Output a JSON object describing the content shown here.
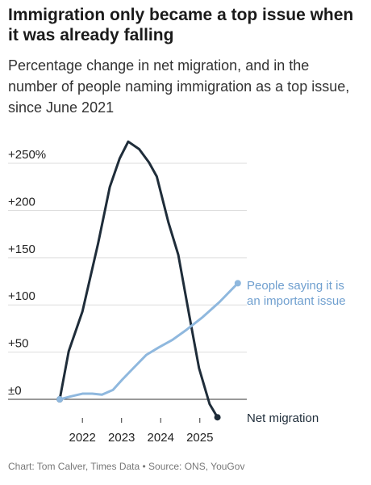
{
  "chart_data": {
    "type": "line",
    "title": "Immigration only became a top issue when it was already falling",
    "subtitle": "Percentage change in net migration, and in the number of people naming immigration as a top issue, since June 2021",
    "source": "Chart: Tom Calver, Times Data • Source: ONS, YouGov",
    "xlim": [
      2020.1,
      2026.2
    ],
    "xticks": [
      2022,
      2023,
      2024,
      2025
    ],
    "ylim": [
      -20,
      280
    ],
    "yticks": [
      {
        "value": 0,
        "label": "±0"
      },
      {
        "value": 50,
        "label": "+50"
      },
      {
        "value": 100,
        "label": "+100"
      },
      {
        "value": 150,
        "label": "+150"
      },
      {
        "value": 200,
        "label": "+200"
      },
      {
        "value": 250,
        "label": "+250%"
      }
    ],
    "grid": true,
    "series": [
      {
        "name": "Net migration",
        "color": "#1f2d3a",
        "x": [
          2021.42,
          2021.65,
          2022.0,
          2022.4,
          2022.7,
          2022.95,
          2023.17,
          2023.45,
          2023.7,
          2023.9,
          2024.2,
          2024.45,
          2024.73,
          2024.98,
          2025.25,
          2025.45
        ],
        "values": [
          0,
          51,
          93,
          165,
          225,
          255,
          273,
          265,
          251,
          236,
          187,
          153,
          89,
          33,
          -5,
          -19
        ]
      },
      {
        "name": "People saying it is an important issue",
        "color": "#8fb8de",
        "x": [
          2021.42,
          2021.69,
          2022.0,
          2022.25,
          2022.5,
          2022.78,
          2023.02,
          2023.3,
          2023.63,
          2023.95,
          2024.3,
          2024.67,
          2025.07,
          2025.5,
          2025.97
        ],
        "values": [
          0,
          3,
          6,
          6,
          5,
          10,
          21,
          33,
          47,
          55,
          63,
          74,
          87,
          103,
          123
        ]
      }
    ]
  }
}
